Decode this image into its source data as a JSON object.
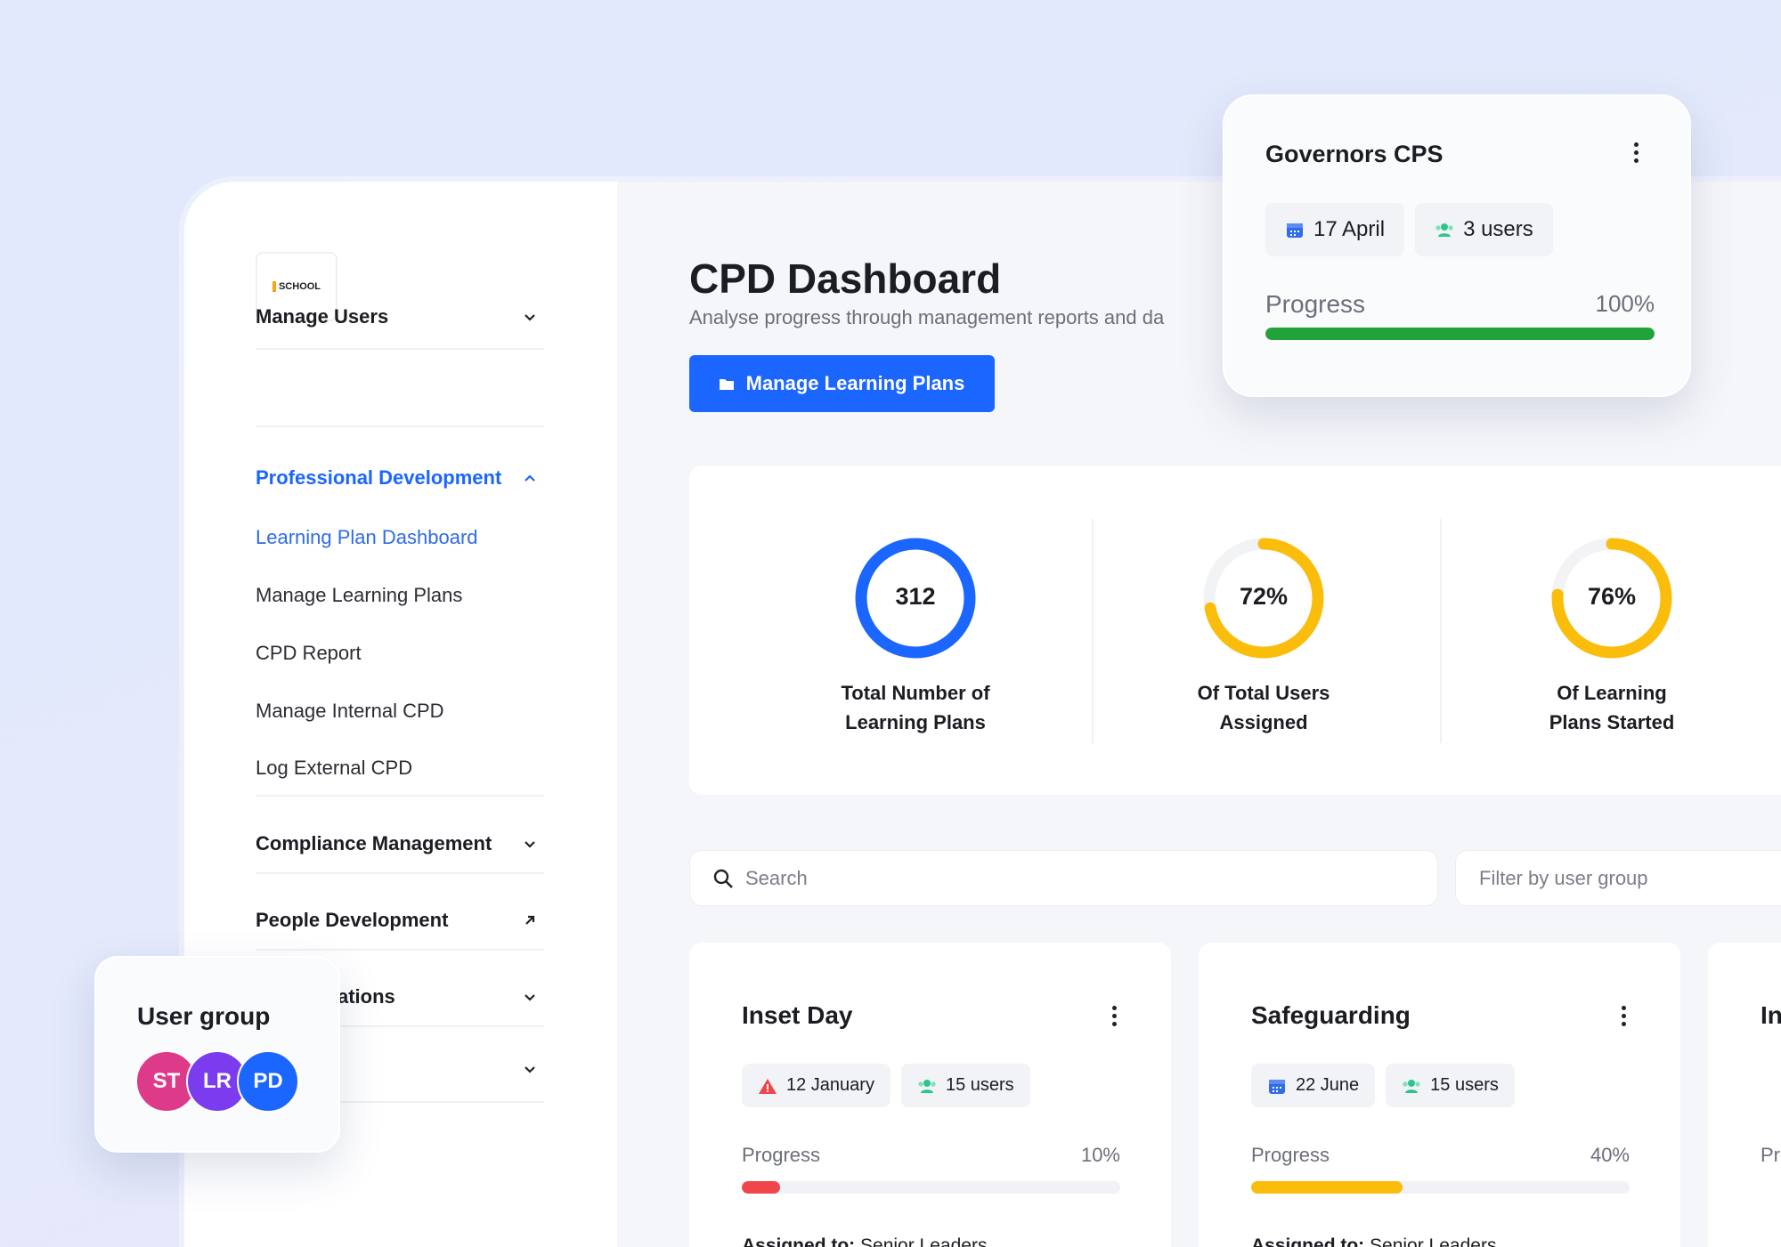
{
  "sidebar": {
    "logo": "SCHOOL",
    "nav": [
      "Manage Users",
      "Professional Development",
      "Compliance Management",
      "People Development",
      "ations"
    ],
    "subnav": [
      "Learning Plan Dashboard",
      "Manage Learning Plans",
      "CPD Report",
      "Manage Internal CPD",
      "Log External CPD"
    ]
  },
  "header": {
    "title": "CPD Dashboard",
    "subtitle": "Analyse progress through management reports and da",
    "button": "Manage Learning Plans"
  },
  "stats": [
    {
      "value": 312,
      "caption": [
        "Total Number of",
        "Learning Plans"
      ],
      "color": "#1a66ff"
    },
    {
      "value": 72,
      "label": "72%",
      "caption": [
        "Of Total Users",
        "Assigned"
      ],
      "color": "#fbbd0b"
    },
    {
      "value": 76,
      "label": "76%",
      "caption": [
        "Of Learning",
        "Plans Started"
      ],
      "color": "#fbbd0b"
    }
  ],
  "search": {
    "placeholder": "Search",
    "filter": "Filter by user group"
  },
  "cards": [
    {
      "title": "Inset Day",
      "date": "12 January",
      "users": "15 users",
      "progress_label": "Progress",
      "progress": {
        "value": 10,
        "label": "10%"
      },
      "color": "#f0454b",
      "assigned_label": "Assigned to:",
      "assigned": "Senior Leaders"
    },
    {
      "title": "Safeguarding",
      "date": "22 June",
      "users": "15 users",
      "progress_label": "Progress",
      "progress": {
        "value": 40,
        "label": "40%"
      },
      "color": "#fbbd0b",
      "assigned_label": "Assigned to:",
      "assigned": "Senior Leaders"
    },
    {
      "title": "In",
      "progress_label": "Pro"
    }
  ],
  "governors": {
    "title": "Governors CPS",
    "date": "17 April",
    "users": "3 users",
    "progress_label": "Progress",
    "progress": {
      "value": 100,
      "label": "100%"
    },
    "color": "#22a33a"
  },
  "user_group": {
    "title": "User group",
    "members": [
      "ST",
      "LR",
      "PD"
    ],
    "colors": [
      "#de3a8a",
      "#7b3cf0",
      "#1a66ff"
    ]
  }
}
